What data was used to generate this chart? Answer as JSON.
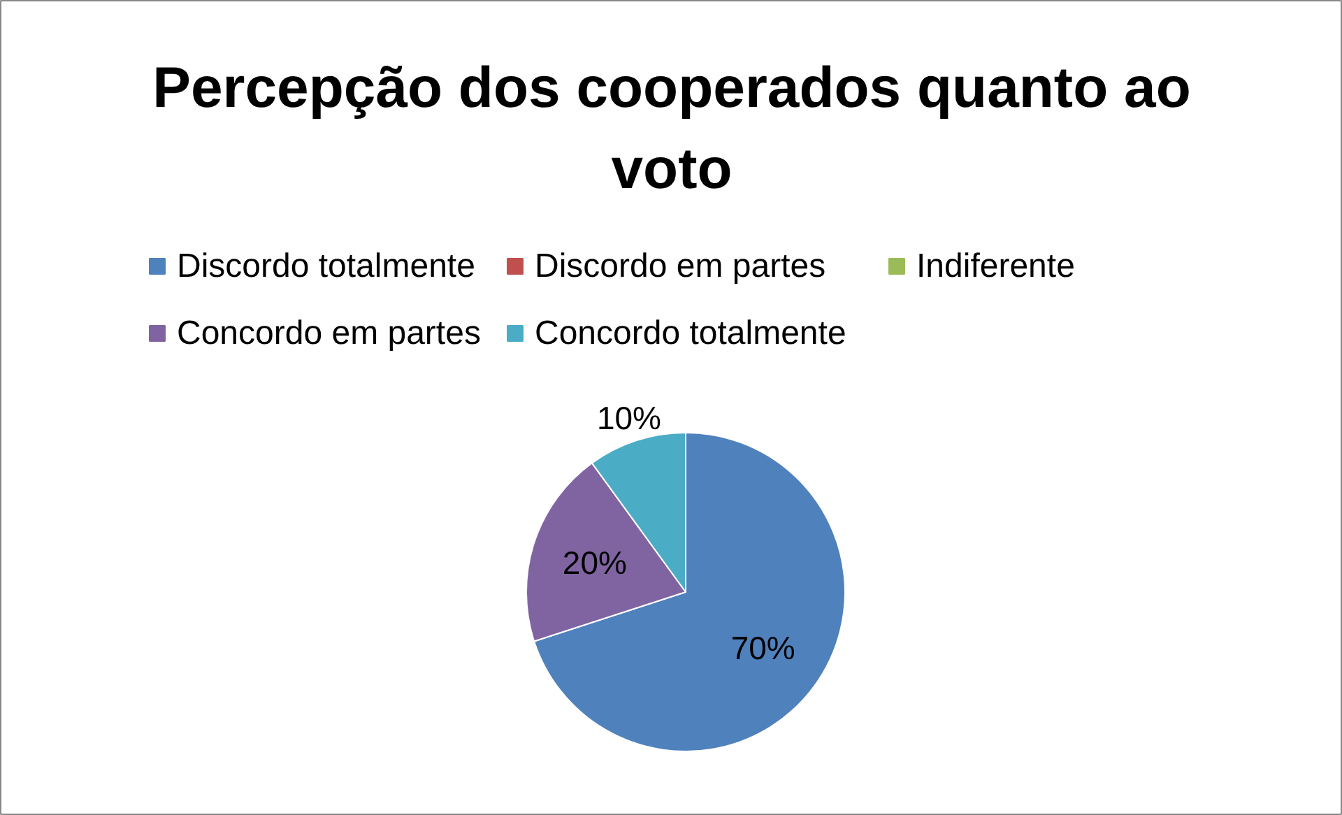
{
  "chart_data": {
    "type": "pie",
    "title": "Percepção dos cooperados quanto ao\nvoto",
    "categories": [
      "Discordo totalmente",
      "Discordo em partes",
      "Indiferente",
      "Concordo em partes",
      "Concordo totalmente"
    ],
    "values": [
      70,
      0,
      0,
      20,
      10
    ],
    "colors": [
      "#4f81bd",
      "#c0504d",
      "#9bbb59",
      "#8064a2",
      "#4bacc6"
    ],
    "value_labels": [
      "70%",
      null,
      null,
      "20%",
      "10%"
    ],
    "legend": "top"
  }
}
